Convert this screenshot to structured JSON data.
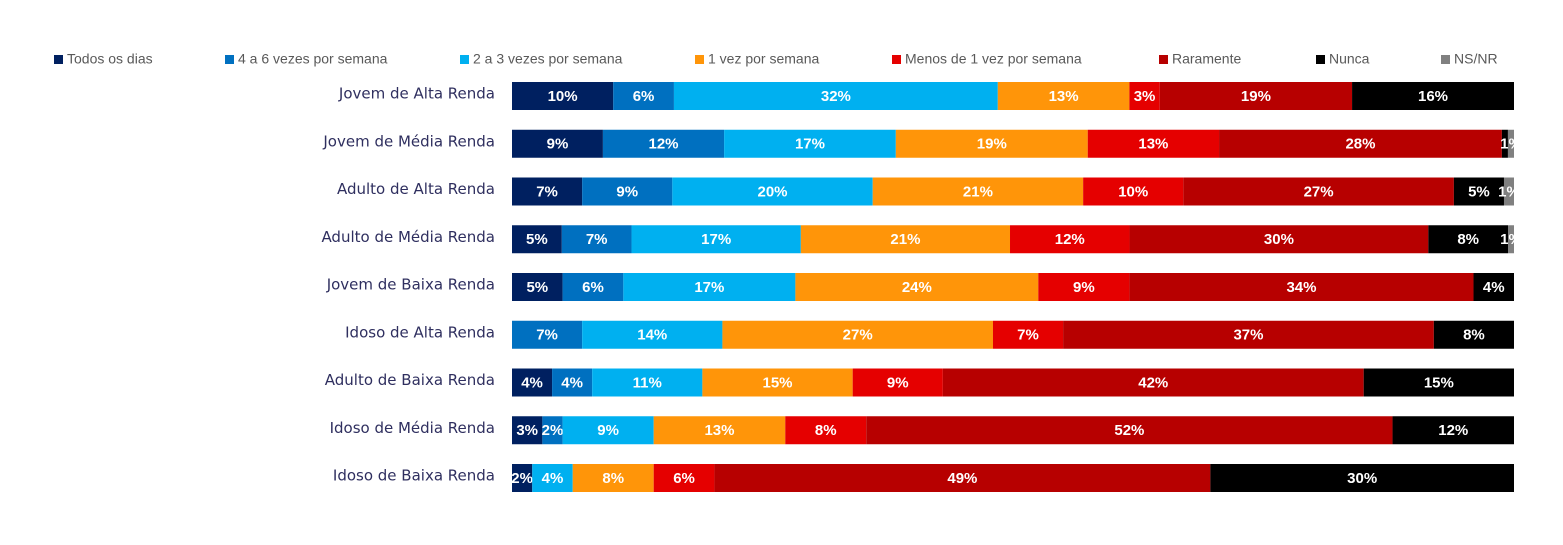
{
  "chart_data": {
    "type": "bar",
    "orientation": "horizontal",
    "stacked": true,
    "legend_position": "top",
    "categories": [
      "Jovem de Alta Renda",
      "Jovem de Média Renda",
      "Adulto de Alta Renda",
      "Adulto de Média Renda",
      "Jovem de Baixa Renda",
      "Idoso de Alta Renda",
      "Adulto de Baixa Renda",
      "Idoso de Média Renda",
      "Idoso de Baixa Renda"
    ],
    "series": [
      {
        "name": "Todos os dias",
        "color": "#002060",
        "values": [
          10,
          9,
          7,
          5,
          5,
          0,
          4,
          3,
          2
        ],
        "labels": [
          "10%",
          "9%",
          "7%",
          "5%",
          "5%",
          "",
          "4%",
          "3%",
          "2%"
        ]
      },
      {
        "name": "4 a 6 vezes por semana",
        "color": "#0070C0",
        "values": [
          6,
          12,
          9,
          7,
          6,
          7,
          4,
          2,
          0
        ],
        "labels": [
          "6%",
          "12%",
          "9%",
          "7%",
          "6%",
          "7%",
          "4%",
          "2%",
          ""
        ]
      },
      {
        "name": "2 a 3 vezes por semana",
        "color": "#00B0F0",
        "values": [
          32,
          17,
          20,
          17,
          17,
          14,
          11,
          9,
          4
        ],
        "labels": [
          "32%",
          "17%",
          "20%",
          "17%",
          "17%",
          "14%",
          "11%",
          "9%",
          "4%"
        ]
      },
      {
        "name": "1 vez por semana",
        "color": "#FF9509",
        "values": [
          13,
          19,
          21,
          21,
          24,
          27,
          15,
          13,
          8
        ],
        "labels": [
          "13%",
          "19%",
          "21%",
          "21%",
          "24%",
          "27%",
          "15%",
          "13%",
          "8%"
        ]
      },
      {
        "name": "Menos de 1 vez por semana",
        "color": "#E50000",
        "values": [
          3,
          13,
          10,
          12,
          9,
          7,
          9,
          8,
          6
        ],
        "labels": [
          "3%",
          "13%",
          "10%",
          "12%",
          "9%",
          "7%",
          "9%",
          "8%",
          "6%"
        ]
      },
      {
        "name": "Raramente",
        "color": "#B70000",
        "values": [
          19,
          28,
          27,
          30,
          34,
          37,
          42,
          52,
          49
        ],
        "labels": [
          "19%",
          "28%",
          "27%",
          "30%",
          "34%",
          "37%",
          "42%",
          "52%",
          "49%"
        ]
      },
      {
        "name": "Nunca",
        "color": "#000000",
        "values": [
          16,
          0.6,
          5,
          8,
          4,
          8,
          15,
          12,
          30
        ],
        "labels": [
          "16%",
          "",
          "5%",
          "8%",
          "4%",
          "8%",
          "15%",
          "12%",
          "30%"
        ]
      },
      {
        "name": "NS/NR",
        "color": "#808080",
        "values": [
          0,
          0.6,
          1,
          0.6,
          0,
          0,
          0,
          0,
          0
        ],
        "labels": [
          "",
          "1%",
          "1%",
          "1%",
          "",
          "",
          "",
          "",
          ""
        ]
      }
    ]
  }
}
